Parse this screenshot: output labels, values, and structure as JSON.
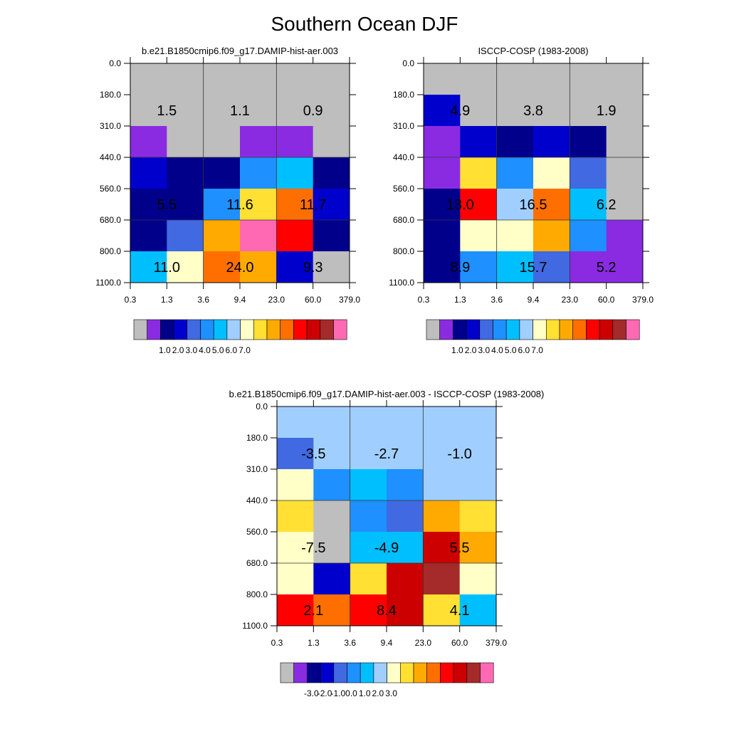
{
  "title": "Southern Ocean DJF",
  "y_ticks": [
    "0.0",
    "180.0",
    "310.0",
    "440.0",
    "560.0",
    "680.0",
    "800.0",
    "1100.0"
  ],
  "x_ticks": [
    "0.3",
    "1.3",
    "3.6",
    "9.4",
    "23.0",
    "60.0",
    "379.0"
  ],
  "colors": {
    "abs": [
      "#bebebe",
      "#8a2be2",
      "#00008b",
      "#0000cd",
      "#4169e1",
      "#1e90ff",
      "#00bfff",
      "#a0cfff",
      "#ffffc8",
      "#ffe033",
      "#ffaa00",
      "#ff6f00",
      "#ff0000",
      "#cc0000",
      "#a52a2a",
      "#ff69b4"
    ],
    "diff": [
      "#bebebe",
      "#8a2be2",
      "#00008b",
      "#0000cd",
      "#4169e1",
      "#1e90ff",
      "#00bfff",
      "#a0cfff",
      "#ffffc8",
      "#ffe033",
      "#ffaa00",
      "#ff6f00",
      "#ff0000",
      "#cc0000",
      "#a52a2a",
      "#ff69b4"
    ]
  },
  "colorbar_labels": {
    "abs": [
      "1.0",
      "2.0",
      "3.0",
      "4.0",
      "5.0",
      "6.0",
      "7.0"
    ],
    "diff": [
      "-3.0",
      "-2.0",
      "-1.0",
      "0.0",
      "1.0",
      "2.0",
      "3.0"
    ]
  },
  "chart_data": [
    {
      "type": "heatmap",
      "title": "b.e21.B1850cmip6.f09_g17.DAMIP-hist-aer.003",
      "x_bins": [
        "0.3",
        "1.3",
        "3.6",
        "9.4",
        "23.0",
        "60.0",
        "379.0"
      ],
      "y_bins": [
        "0.0",
        "180.0",
        "310.0",
        "440.0",
        "560.0",
        "680.0",
        "800.0",
        "1100.0"
      ],
      "cells": [
        [
          0,
          0,
          0,
          0,
          0,
          0
        ],
        [
          0,
          0,
          0,
          0,
          0,
          0
        ],
        [
          1,
          0,
          0,
          1,
          1,
          0
        ],
        [
          3,
          2,
          2,
          5,
          6,
          2
        ],
        [
          2,
          2,
          5,
          9,
          11,
          3
        ],
        [
          2,
          4,
          10,
          15,
          12,
          2
        ],
        [
          6,
          8,
          11,
          10,
          3,
          0
        ]
      ],
      "group_labels": [
        [
          "1.5",
          "1.1",
          "0.9"
        ],
        [
          "5.5",
          "11.6",
          "11.7"
        ],
        [
          "11.0",
          "24.0",
          "9.3"
        ]
      ]
    },
    {
      "type": "heatmap",
      "title": "ISCCP-COSP (1983-2008)",
      "x_bins": [
        "0.3",
        "1.3",
        "3.6",
        "9.4",
        "23.0",
        "60.0",
        "379.0"
      ],
      "y_bins": [
        "0.0",
        "180.0",
        "310.0",
        "440.0",
        "560.0",
        "680.0",
        "800.0",
        "1100.0"
      ],
      "cells": [
        [
          0,
          0,
          0,
          0,
          0,
          0
        ],
        [
          3,
          0,
          0,
          0,
          0,
          0
        ],
        [
          1,
          3,
          2,
          3,
          2,
          0
        ],
        [
          1,
          9,
          5,
          8,
          4,
          0
        ],
        [
          2,
          12,
          7,
          11,
          6,
          0
        ],
        [
          2,
          8,
          8,
          10,
          5,
          1
        ],
        [
          2,
          5,
          6,
          4,
          1,
          1
        ]
      ],
      "group_labels": [
        [
          "4.9",
          "3.8",
          "1.9"
        ],
        [
          "13.0",
          "16.5",
          "6.2"
        ],
        [
          "8.9",
          "15.7",
          "5.2"
        ]
      ]
    },
    {
      "type": "heatmap",
      "title": "b.e21.B1850cmip6.f09_g17.DAMIP-hist-aer.003 - ISCCP-COSP (1983-2008)",
      "x_bins": [
        "0.3",
        "1.3",
        "3.6",
        "9.4",
        "23.0",
        "60.0",
        "379.0"
      ],
      "y_bins": [
        "0.0",
        "180.0",
        "310.0",
        "440.0",
        "560.0",
        "680.0",
        "800.0",
        "1100.0"
      ],
      "cells": [
        [
          7,
          7,
          7,
          7,
          7,
          7
        ],
        [
          4,
          7,
          7,
          7,
          7,
          7
        ],
        [
          8,
          5,
          6,
          5,
          7,
          7
        ],
        [
          9,
          0,
          5,
          4,
          10,
          9
        ],
        [
          8,
          0,
          6,
          6,
          13,
          10
        ],
        [
          8,
          3,
          9,
          13,
          14,
          8
        ],
        [
          12,
          11,
          12,
          13,
          9,
          6
        ]
      ],
      "group_labels": [
        [
          "-3.5",
          "-2.7",
          "-1.0"
        ],
        [
          "-7.5",
          "-4.9",
          "5.5"
        ],
        [
          "2.1",
          "8.4",
          "4.1"
        ]
      ]
    }
  ]
}
